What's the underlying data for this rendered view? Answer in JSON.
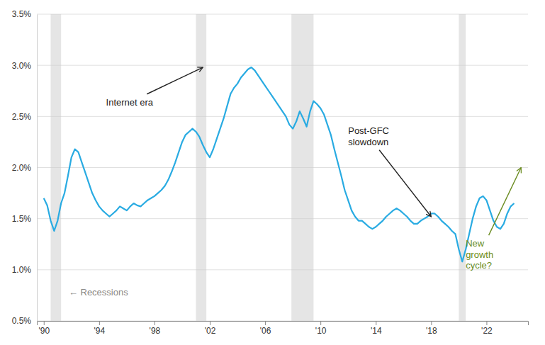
{
  "chart_data": {
    "type": "line",
    "color": "#29ABE2",
    "grid": "y",
    "xlim": [
      1989.5,
      2025.0
    ],
    "xticks": [
      {
        "value": 1990,
        "label": "'90"
      },
      {
        "value": 1994,
        "label": "'94"
      },
      {
        "value": 1998,
        "label": "'98"
      },
      {
        "value": 2002,
        "label": "'02"
      },
      {
        "value": 2006,
        "label": "'06"
      },
      {
        "value": 2010,
        "label": "'10"
      },
      {
        "value": 2014,
        "label": "'14"
      },
      {
        "value": 2018,
        "label": "'18"
      },
      {
        "value": 2022,
        "label": "'22"
      }
    ],
    "ylim": [
      0.005,
      0.035
    ],
    "yticks": [
      {
        "value": 0.005,
        "label": "0.5%"
      },
      {
        "value": 0.01,
        "label": "1.0%"
      },
      {
        "value": 0.015,
        "label": "1.5%"
      },
      {
        "value": 0.02,
        "label": "2.0%"
      },
      {
        "value": 0.025,
        "label": "2.5%"
      },
      {
        "value": 0.03,
        "label": "3.0%"
      },
      {
        "value": 0.035,
        "label": "3.5%"
      }
    ],
    "recessions": {
      "color": "#CCCCCC",
      "ranges": [
        [
          1990.5,
          1991.25
        ],
        [
          2001.0,
          2001.75
        ],
        [
          2007.9,
          2009.5
        ],
        [
          2020.0,
          2020.5
        ]
      ]
    },
    "annotations": [
      {
        "text": "Internet era",
        "xy": [
          2001.5,
          0.0298
        ],
        "xytext": [
          1994.5,
          0.0268
        ]
      },
      {
        "text": "Post-GFC\nslowdown",
        "xy": [
          2018.0,
          0.0152
        ],
        "xytext": [
          2012.0,
          0.024
        ]
      },
      {
        "text": "New\ngrowth\ncycle?",
        "xy": [
          2024.5,
          0.02
        ],
        "xytext": [
          2020.5,
          0.0115
        ],
        "color": "#6B8C21"
      },
      {
        "text": "←  Recessions",
        "xytext": [
          1991.8,
          0.0078
        ],
        "color": "#888888"
      }
    ],
    "x": [
      1990.0,
      1990.25,
      1990.5,
      1990.75,
      1991.0,
      1991.25,
      1991.5,
      1991.75,
      1992.0,
      1992.25,
      1992.5,
      1992.75,
      1993.0,
      1993.25,
      1993.5,
      1993.75,
      1994.0,
      1994.25,
      1994.5,
      1994.75,
      1995.0,
      1995.25,
      1995.5,
      1995.75,
      1996.0,
      1996.25,
      1996.5,
      1996.75,
      1997.0,
      1997.25,
      1997.5,
      1997.75,
      1998.0,
      1998.25,
      1998.5,
      1998.75,
      1999.0,
      1999.25,
      1999.5,
      1999.75,
      2000.0,
      2000.25,
      2000.5,
      2000.75,
      2001.0,
      2001.25,
      2001.5,
      2001.75,
      2002.0,
      2002.25,
      2002.5,
      2002.75,
      2003.0,
      2003.25,
      2003.5,
      2003.75,
      2004.0,
      2004.25,
      2004.5,
      2004.75,
      2005.0,
      2005.25,
      2005.5,
      2005.75,
      2006.0,
      2006.25,
      2006.5,
      2006.75,
      2007.0,
      2007.25,
      2007.5,
      2007.75,
      2008.0,
      2008.25,
      2008.5,
      2008.75,
      2009.0,
      2009.25,
      2009.5,
      2009.75,
      2010.0,
      2010.25,
      2010.5,
      2010.75,
      2011.0,
      2011.25,
      2011.5,
      2011.75,
      2012.0,
      2012.25,
      2012.5,
      2012.75,
      2013.0,
      2013.25,
      2013.5,
      2013.75,
      2014.0,
      2014.25,
      2014.5,
      2014.75,
      2015.0,
      2015.25,
      2015.5,
      2015.75,
      2016.0,
      2016.25,
      2016.5,
      2016.75,
      2017.0,
      2017.25,
      2017.5,
      2017.75,
      2018.0,
      2018.25,
      2018.5,
      2018.75,
      2019.0,
      2019.25,
      2019.5,
      2019.75,
      2020.0,
      2020.25,
      2020.5,
      2020.75,
      2021.0,
      2021.25,
      2021.5,
      2021.75,
      2022.0,
      2022.25,
      2022.5,
      2022.75,
      2023.0,
      2023.25,
      2023.5,
      2023.75,
      2024.0
    ],
    "values": [
      0.017,
      0.0163,
      0.0148,
      0.0138,
      0.0148,
      0.0165,
      0.0175,
      0.0192,
      0.021,
      0.0218,
      0.0215,
      0.0205,
      0.0195,
      0.0185,
      0.0175,
      0.0168,
      0.0162,
      0.0158,
      0.0155,
      0.0152,
      0.0155,
      0.0158,
      0.0162,
      0.016,
      0.0158,
      0.0162,
      0.0165,
      0.0163,
      0.0162,
      0.0165,
      0.0168,
      0.017,
      0.0172,
      0.0175,
      0.0178,
      0.0182,
      0.0188,
      0.0196,
      0.0205,
      0.0215,
      0.0225,
      0.0232,
      0.0235,
      0.0238,
      0.0235,
      0.023,
      0.0222,
      0.0215,
      0.021,
      0.0218,
      0.0228,
      0.0238,
      0.0248,
      0.026,
      0.0272,
      0.0278,
      0.0282,
      0.0288,
      0.0292,
      0.0296,
      0.0298,
      0.0295,
      0.029,
      0.0285,
      0.028,
      0.0275,
      0.027,
      0.0265,
      0.026,
      0.0255,
      0.025,
      0.0242,
      0.0238,
      0.0245,
      0.0255,
      0.0248,
      0.024,
      0.0255,
      0.0265,
      0.0262,
      0.0258,
      0.0252,
      0.0242,
      0.0232,
      0.0218,
      0.0205,
      0.0192,
      0.0178,
      0.0168,
      0.0158,
      0.0152,
      0.0148,
      0.0148,
      0.0145,
      0.0142,
      0.014,
      0.0142,
      0.0145,
      0.0148,
      0.0152,
      0.0155,
      0.0158,
      0.016,
      0.0158,
      0.0155,
      0.0152,
      0.0148,
      0.0145,
      0.0145,
      0.0148,
      0.015,
      0.0152,
      0.0155,
      0.0155,
      0.0152,
      0.0148,
      0.0145,
      0.0142,
      0.0138,
      0.0135,
      0.012,
      0.0108,
      0.012,
      0.0135,
      0.015,
      0.0162,
      0.017,
      0.0172,
      0.0168,
      0.0158,
      0.0148,
      0.0142,
      0.014,
      0.0145,
      0.0155,
      0.0162,
      0.0165
    ]
  }
}
